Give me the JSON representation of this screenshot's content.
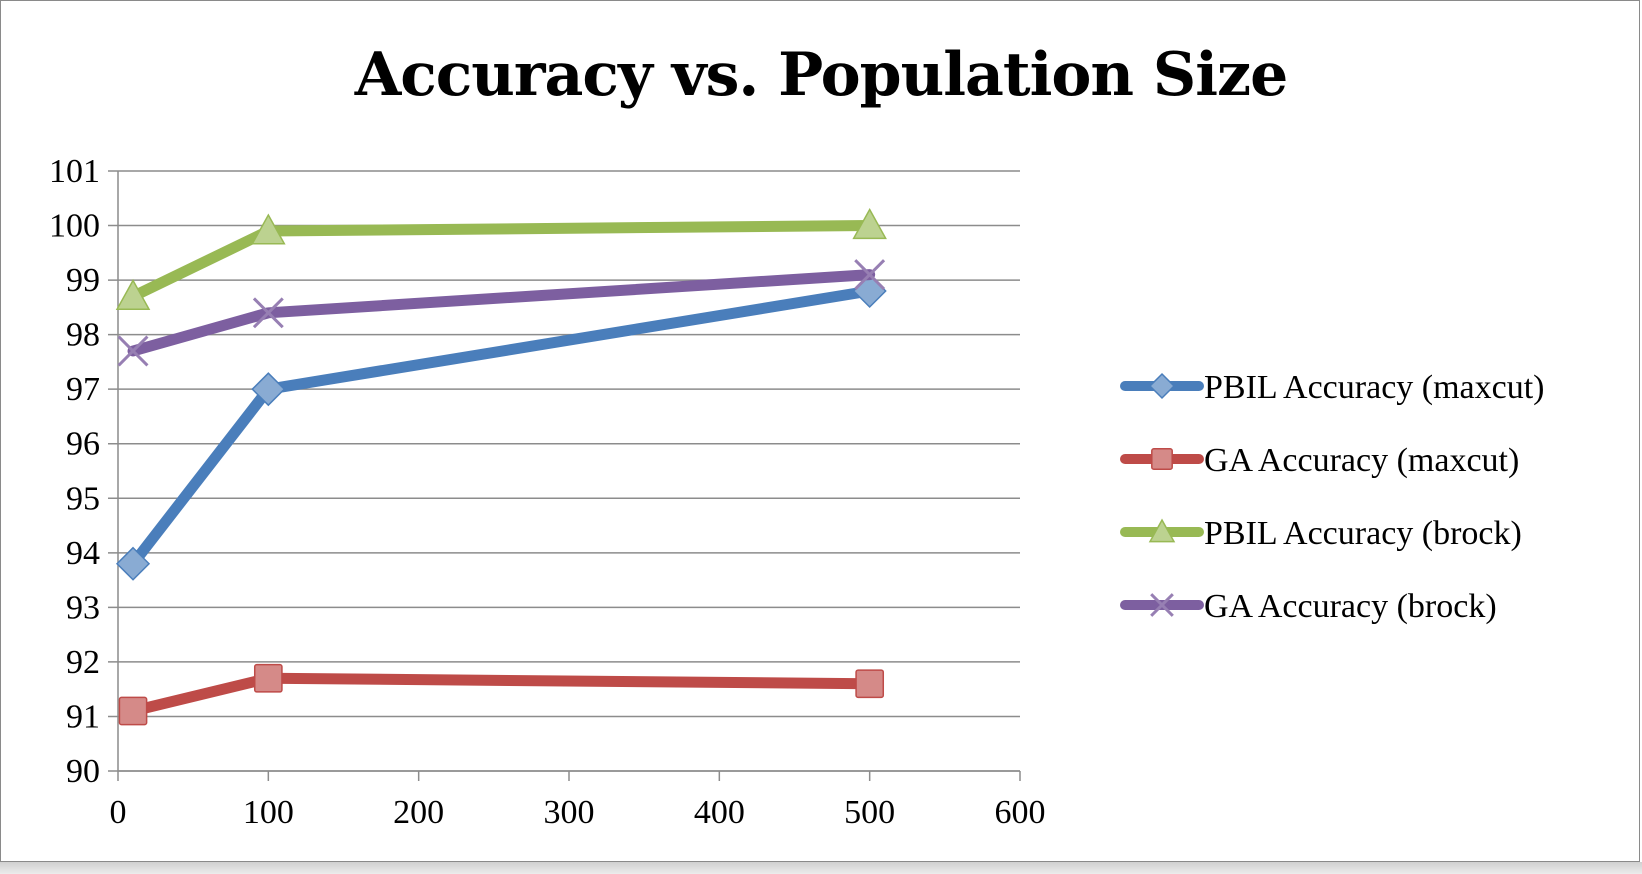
{
  "chart_data": {
    "type": "line",
    "title": "Accuracy vs. Population Size",
    "xlabel": "",
    "ylabel": "",
    "xlim": [
      0,
      600
    ],
    "ylim": [
      90,
      101
    ],
    "x_ticks": [
      0,
      100,
      200,
      300,
      400,
      500,
      600
    ],
    "y_ticks": [
      90,
      91,
      92,
      93,
      94,
      95,
      96,
      97,
      98,
      99,
      100,
      101
    ],
    "grid": "horizontal",
    "legend_position": "right",
    "series": [
      {
        "name": "PBIL Accuracy (maxcut)",
        "color": "#4a7ebb",
        "marker": "diamond",
        "points": [
          {
            "x": 10,
            "y": 93.8
          },
          {
            "x": 100,
            "y": 97.0
          },
          {
            "x": 500,
            "y": 98.8
          }
        ]
      },
      {
        "name": "GA Accuracy (maxcut)",
        "color": "#be4b48",
        "marker": "square",
        "points": [
          {
            "x": 10,
            "y": 91.1
          },
          {
            "x": 100,
            "y": 91.7
          },
          {
            "x": 500,
            "y": 91.6
          }
        ]
      },
      {
        "name": "PBIL Accuracy (brock)",
        "color": "#98b954",
        "marker": "triangle",
        "points": [
          {
            "x": 10,
            "y": 98.7
          },
          {
            "x": 100,
            "y": 99.9
          },
          {
            "x": 500,
            "y": 100.0
          }
        ]
      },
      {
        "name": "GA Accuracy (brock)",
        "color": "#7d5fa0",
        "marker": "x",
        "points": [
          {
            "x": 10,
            "y": 97.7
          },
          {
            "x": 100,
            "y": 98.4
          },
          {
            "x": 500,
            "y": 99.1
          }
        ]
      }
    ]
  }
}
